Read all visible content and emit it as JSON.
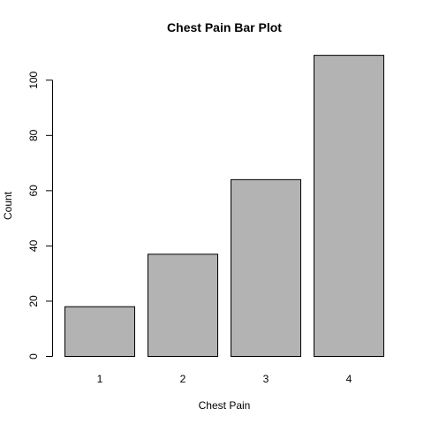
{
  "chart_data": {
    "type": "bar",
    "title": "Chest Pain Bar Plot",
    "xlabel": "Chest Pain",
    "ylabel": "Count",
    "categories": [
      "1",
      "2",
      "3",
      "4"
    ],
    "values": [
      18,
      37,
      64,
      109
    ],
    "ylim": [
      0,
      110
    ],
    "yticks": [
      0,
      20,
      40,
      60,
      80,
      100
    ],
    "bar_color": "#b3b3b3",
    "grid": false,
    "legend": "none"
  }
}
